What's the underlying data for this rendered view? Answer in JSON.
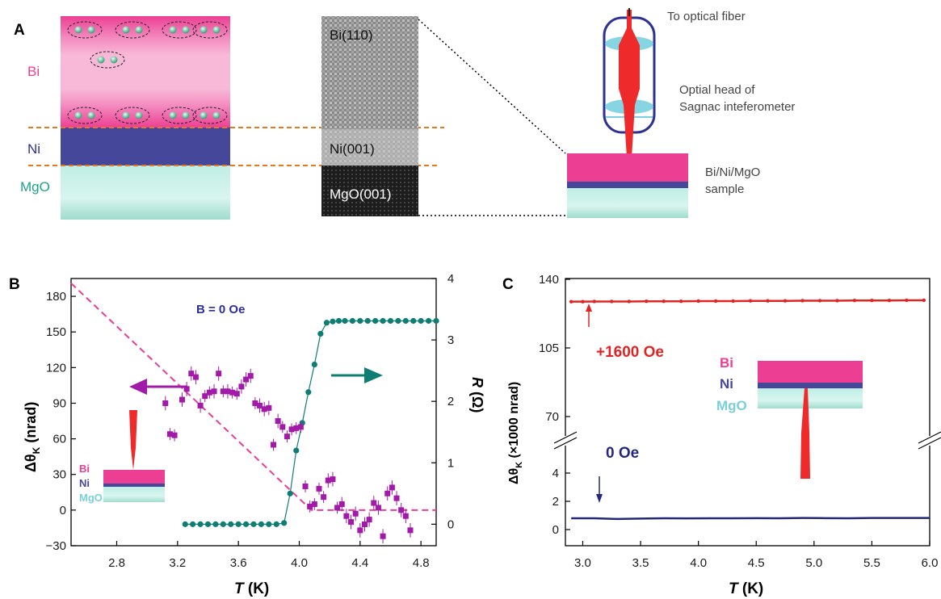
{
  "panel_a": {
    "panel_label": "A",
    "layers": {
      "bi": "Bi",
      "ni": "Ni",
      "mgo": "MgO"
    },
    "tem_labels": {
      "bi110": "Bi(110)",
      "ni001": "Ni(001)",
      "mgo001": "MgO(001)"
    },
    "annotations": {
      "fiber": "To optical fiber",
      "head_line1": "Optial head of",
      "head_line2": "Sagnac inteferometer",
      "sample_line1": "Bi/Ni/MgO",
      "sample_line2": "sample"
    },
    "colors": {
      "bi": "#ec3f93",
      "bi_light": "#f8b9d8",
      "ni": "#45489a",
      "mgo": "#bfeee4",
      "accent": "#e8781e",
      "beam": "#ee2a2a",
      "head": "#2d3192"
    }
  },
  "panel_b": {
    "panel_label": "B",
    "field_label": "B = 0 Oe",
    "ylabel_left_main": "Δθ",
    "ylabel_left_sub": "K",
    "ylabel_left_unit": " (nrad)",
    "ylabel_right_main": "R",
    "ylabel_right_unit": " (Ω)",
    "xlabel_main": "T",
    "xlabel_unit": " (K)",
    "inset": {
      "bi": "Bi",
      "ni": "Ni",
      "mgo": "MgO"
    },
    "colors": {
      "kerr": "#a21aa8",
      "fit": "#ea3c98",
      "resistance": "#0e7d74"
    }
  },
  "panel_c": {
    "panel_label": "C",
    "ylabel_main": "Δθ",
    "ylabel_sub": "K",
    "ylabel_unit": " (×1000 nrad)",
    "xlabel_main": "T",
    "xlabel_unit": " (K)",
    "field_high": "+1600 Oe",
    "field_zero": "0 Oe",
    "inset": {
      "bi": "Bi",
      "ni": "Ni",
      "mgo": "MgO"
    },
    "colors": {
      "high": "#e02424",
      "zero": "#25287a"
    }
  },
  "chart_data": [
    {
      "type": "scatter",
      "panel": "B",
      "title": "",
      "xlabel": "T (K)",
      "ylabel": "Δθ_K (nrad)",
      "ylabel_right": "R (Ω)",
      "xlim": [
        2.5,
        4.9
      ],
      "ylim": [
        -30,
        195
      ],
      "ylim_right": [
        -0.35,
        4.0
      ],
      "xticks": [
        "2.8",
        "3.2",
        "3.6",
        "4.0",
        "4.4",
        "4.8"
      ],
      "yticks": [
        "−30",
        "0",
        "30",
        "60",
        "90",
        "120",
        "150",
        "180"
      ],
      "yticks_right": [
        "0",
        "1",
        "2",
        "3",
        "4"
      ],
      "series": [
        {
          "name": "",
          "kind": "points-with-errorbars",
          "axis": "left",
          "x": [
            3.12,
            3.15,
            3.18,
            3.23,
            3.26,
            3.29,
            3.32,
            3.35,
            3.38,
            3.41,
            3.44,
            3.47,
            3.5,
            3.53,
            3.56,
            3.59,
            3.62,
            3.65,
            3.68,
            3.71,
            3.74,
            3.77,
            3.8,
            3.83,
            3.86,
            3.89,
            3.92,
            3.95,
            3.98,
            4.01,
            4.04,
            4.07,
            4.1,
            4.13,
            4.16,
            4.19,
            4.22,
            4.25,
            4.28,
            4.31,
            4.34,
            4.37,
            4.4,
            4.43,
            4.46,
            4.49,
            4.52,
            4.55,
            4.58,
            4.61,
            4.64,
            4.67,
            4.7,
            4.73
          ],
          "y": [
            90,
            64,
            63,
            93,
            102,
            115,
            112,
            88,
            96,
            99,
            100,
            115,
            100,
            100,
            99,
            98,
            104,
            110,
            113,
            90,
            88,
            85,
            86,
            55,
            75,
            70,
            62,
            68,
            69,
            70,
            20,
            3,
            5,
            18,
            11,
            25,
            26,
            2,
            5,
            -5,
            -10,
            -3,
            -17,
            -12,
            -8,
            6,
            2,
            -22,
            14,
            19,
            10,
            0,
            -5,
            -17
          ],
          "err": [
            4,
            3,
            3,
            4,
            4,
            4,
            4,
            4,
            3,
            3,
            4,
            4,
            3,
            4,
            3,
            3,
            4,
            4,
            4,
            3,
            4,
            4,
            4,
            3,
            4,
            3,
            3,
            3,
            3,
            3,
            3,
            3,
            3,
            3,
            3,
            4,
            4,
            3,
            4,
            4,
            4,
            4,
            4,
            4,
            4,
            4,
            4,
            4,
            4,
            4,
            4,
            4,
            4,
            4
          ]
        },
        {
          "name": "",
          "kind": "dashed-line",
          "axis": "left",
          "x": [
            2.5,
            4.08,
            4.9
          ],
          "y": [
            191,
            0,
            0
          ]
        },
        {
          "name": "",
          "kind": "points-and-line",
          "axis": "right",
          "x": [
            3.25,
            3.3,
            3.35,
            3.4,
            3.45,
            3.5,
            3.55,
            3.6,
            3.65,
            3.7,
            3.75,
            3.8,
            3.85,
            3.9,
            3.94,
            3.98,
            4.02,
            4.06,
            4.1,
            4.14,
            4.18,
            4.22,
            4.26,
            4.3,
            4.35,
            4.4,
            4.45,
            4.5,
            4.55,
            4.6,
            4.65,
            4.7,
            4.75,
            4.8,
            4.85,
            4.9
          ],
          "y": [
            0,
            0,
            0,
            0,
            0,
            0,
            0,
            0,
            0,
            0,
            0,
            0,
            0,
            0.02,
            0.5,
            1.2,
            1.65,
            2.15,
            2.6,
            3.1,
            3.28,
            3.3,
            3.31,
            3.31,
            3.31,
            3.31,
            3.31,
            3.31,
            3.31,
            3.31,
            3.31,
            3.31,
            3.31,
            3.31,
            3.31,
            3.31
          ]
        }
      ]
    },
    {
      "type": "line",
      "panel": "C",
      "title": "",
      "xlabel": "T (K)",
      "ylabel": "Δθ_K (×1000 nrad)",
      "xlim": [
        2.85,
        6.0
      ],
      "broken_axis": true,
      "ylim_upper": [
        60,
        140
      ],
      "ylim_lower": [
        -0.5,
        6
      ],
      "xticks": [
        "3.0",
        "3.5",
        "4.0",
        "4.5",
        "5.0",
        "5.5",
        "6.0"
      ],
      "yticks_upper": [
        "70",
        "105",
        "140"
      ],
      "yticks_lower": [
        "0",
        "2",
        "4"
      ],
      "series": [
        {
          "name": "+1600 Oe",
          "kind": "line-with-points",
          "x": [
            2.9,
            3.0,
            3.1,
            3.25,
            3.4,
            3.55,
            3.7,
            3.85,
            4.0,
            4.15,
            4.3,
            4.45,
            4.6,
            4.75,
            4.9,
            5.05,
            5.2,
            5.35,
            5.5,
            5.65,
            5.8,
            5.95
          ],
          "y": [
            128.6,
            128.6,
            128.7,
            128.7,
            128.7,
            128.8,
            128.8,
            128.8,
            128.9,
            128.9,
            128.9,
            129.0,
            129.0,
            129.0,
            129.1,
            129.1,
            129.1,
            129.2,
            129.2,
            129.2,
            129.3,
            129.3
          ]
        },
        {
          "name": "0 Oe",
          "kind": "line",
          "x": [
            2.9,
            3.1,
            3.3,
            3.5,
            3.7,
            3.9,
            4.1,
            4.3,
            4.5,
            4.7,
            4.9,
            5.1,
            5.3,
            5.5,
            5.7,
            5.9,
            6.0
          ],
          "y": [
            0.8,
            0.8,
            0.75,
            0.78,
            0.8,
            0.79,
            0.8,
            0.8,
            0.81,
            0.8,
            0.82,
            0.81,
            0.8,
            0.82,
            0.82,
            0.82,
            0.82
          ]
        }
      ]
    }
  ]
}
